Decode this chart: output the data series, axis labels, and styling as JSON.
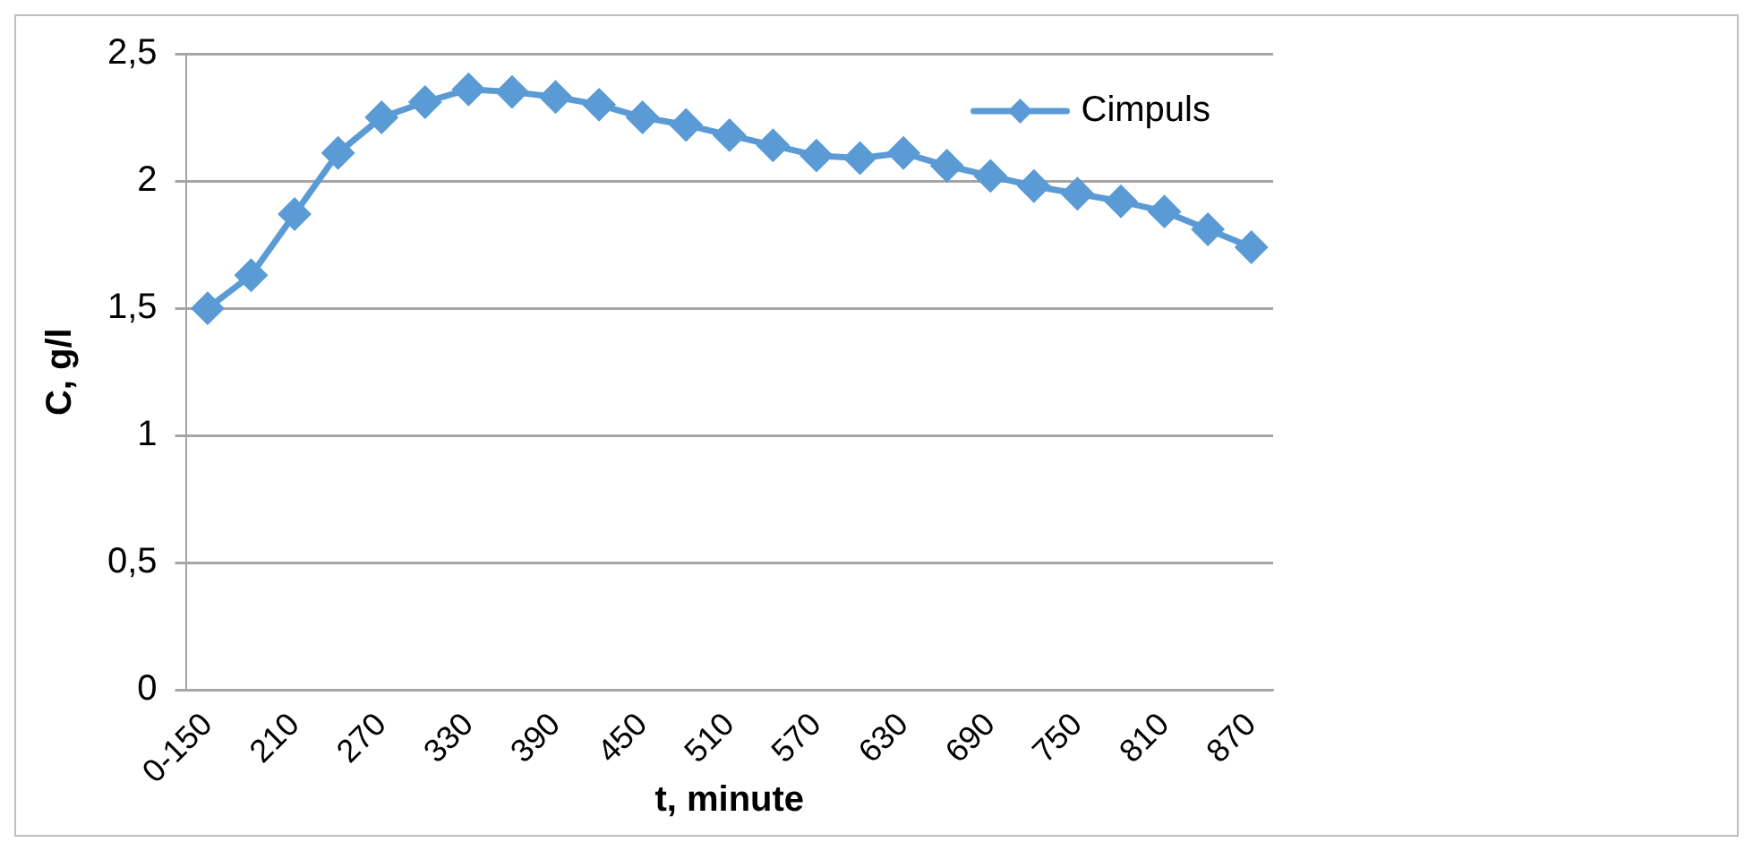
{
  "chart_data": {
    "type": "line",
    "xlabel": "t, minute",
    "ylabel": "C, g/l",
    "categories": [
      "0-150",
      null,
      "210",
      null,
      "270",
      null,
      "330",
      null,
      "390",
      null,
      "450",
      null,
      "510",
      null,
      "570",
      null,
      "630",
      null,
      "690",
      null,
      "750",
      null,
      "810",
      null,
      "870"
    ],
    "series": [
      {
        "name": "Cimpuls",
        "color": "#5b9bd5",
        "values": [
          1.5,
          1.63,
          1.87,
          2.11,
          2.25,
          2.31,
          2.36,
          2.35,
          2.33,
          2.3,
          2.25,
          2.22,
          2.18,
          2.14,
          2.1,
          2.09,
          2.11,
          2.06,
          2.02,
          1.98,
          1.95,
          1.92,
          1.88,
          1.81,
          1.74
        ]
      }
    ],
    "ylim": [
      0,
      2.5
    ],
    "yticks": [
      {
        "value": 0,
        "label": "0"
      },
      {
        "value": 0.5,
        "label": "0,5"
      },
      {
        "value": 1,
        "label": "1"
      },
      {
        "value": 1.5,
        "label": "1,5"
      },
      {
        "value": 2,
        "label": "2"
      },
      {
        "value": 2.5,
        "label": "2,5"
      }
    ],
    "grid": "y",
    "legend": "top right",
    "marker": "diamond",
    "line_style": "solid"
  }
}
